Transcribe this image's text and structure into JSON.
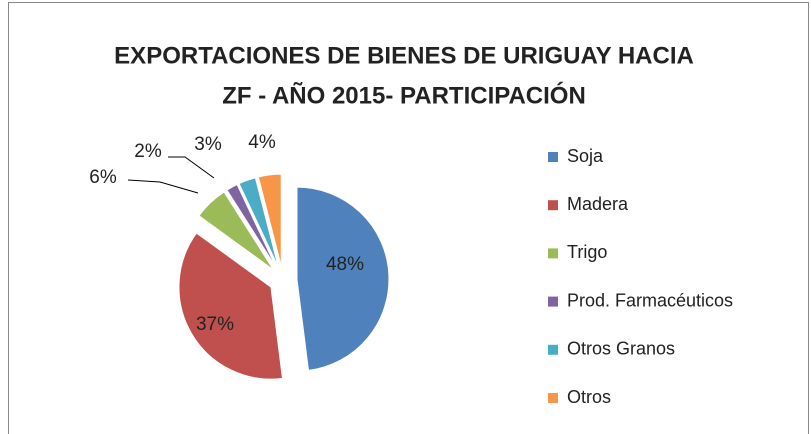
{
  "chart_data": {
    "type": "pie",
    "title": [
      "EXPORTACIONES DE BIENES DE URIGUAY HACIA",
      "ZF - AÑO 2015- PARTICIPACIÓN"
    ],
    "categories": [
      "Soja",
      "Madera",
      "Trigo",
      "Prod. Farmacéuticos",
      "Otros Granos",
      "Otros"
    ],
    "values": [
      48,
      37,
      6,
      2,
      3,
      4
    ],
    "value_labels": [
      "48%",
      "37%",
      "6%",
      "2%",
      "3%",
      "4%"
    ],
    "colors": [
      "#4f81bd",
      "#c0504d",
      "#9bbb59",
      "#8064a2",
      "#4bacc6",
      "#f79646"
    ],
    "legend": "right"
  }
}
